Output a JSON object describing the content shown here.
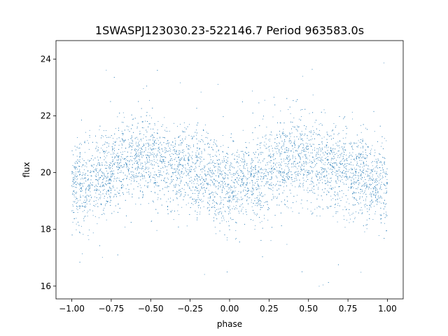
{
  "chart_data": {
    "type": "scatter",
    "title": "1SWASPJ123030.23-522146.7 Period 963583.0s",
    "xlabel": "phase",
    "ylabel": "flux",
    "xlim": [
      -1.1,
      1.1
    ],
    "ylim": [
      15.55,
      24.65
    ],
    "x_ticks": [
      -1.0,
      -0.75,
      -0.5,
      -0.25,
      0.0,
      0.25,
      0.5,
      0.75,
      1.0
    ],
    "x_tick_labels": [
      "−1.00",
      "−0.75",
      "−0.50",
      "−0.25",
      "0.00",
      "0.25",
      "0.50",
      "0.75",
      "1.00"
    ],
    "y_ticks": [
      16,
      18,
      20,
      22,
      24
    ],
    "y_tick_labels": [
      "16",
      "18",
      "20",
      "22",
      "24"
    ],
    "grid": false,
    "legend": "none",
    "point_color": "#1f77b4",
    "series": [
      {
        "x_range": [
          -1.0,
          1.0
        ],
        "phase_profile": [
          {
            "phase": -1.0,
            "median": 19.5
          },
          {
            "phase": -0.9,
            "median": 19.7
          },
          {
            "phase": -0.8,
            "median": 19.8
          },
          {
            "phase": -0.7,
            "median": 20.3
          },
          {
            "phase": -0.6,
            "median": 20.6
          },
          {
            "phase": -0.5,
            "median": 20.5
          },
          {
            "phase": -0.4,
            "median": 20.2
          },
          {
            "phase": -0.3,
            "median": 20.1
          },
          {
            "phase": -0.2,
            "median": 19.9
          },
          {
            "phase": -0.1,
            "median": 19.7
          },
          {
            "phase": 0.0,
            "median": 19.5
          },
          {
            "phase": 0.1,
            "median": 19.7
          },
          {
            "phase": 0.2,
            "median": 19.8
          },
          {
            "phase": 0.3,
            "median": 20.3
          },
          {
            "phase": 0.4,
            "median": 20.6
          },
          {
            "phase": 0.5,
            "median": 20.5
          },
          {
            "phase": 0.6,
            "median": 20.2
          },
          {
            "phase": 0.7,
            "median": 20.1
          },
          {
            "phase": 0.8,
            "median": 19.9
          },
          {
            "phase": 0.9,
            "median": 19.7
          },
          {
            "phase": 1.0,
            "median": 19.5
          }
        ],
        "typical_range": [
          18.3,
          21.6
        ],
        "outlier_range": [
          15.9,
          24.2
        ]
      }
    ]
  }
}
